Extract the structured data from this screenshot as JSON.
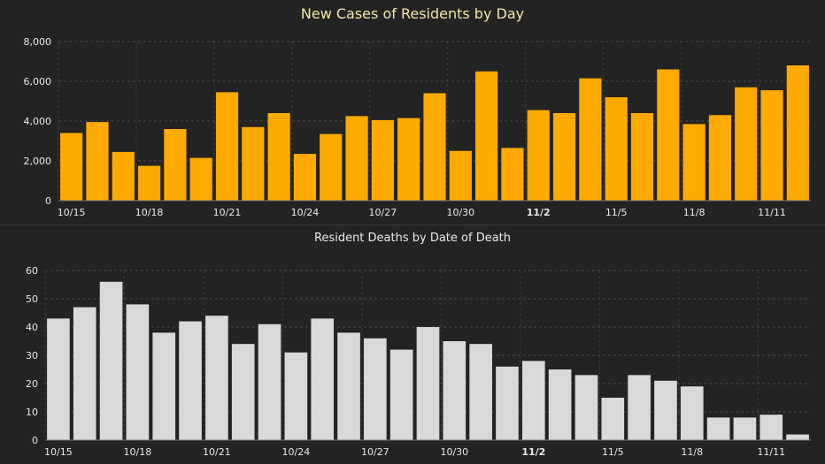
{
  "chart_data": [
    {
      "type": "bar",
      "title": "New Cases of Residents by Day",
      "xlabel": "",
      "ylabel": "",
      "ylim": [
        0,
        8000
      ],
      "yticks": [
        0,
        2000,
        4000,
        6000,
        8000
      ],
      "ytick_labels": [
        "0",
        "2,000",
        "4,000",
        "6,000",
        "8,000"
      ],
      "grid": true,
      "bar_color": "#ffaa00",
      "categories": [
        "10/15",
        "10/16",
        "10/17",
        "10/18",
        "10/19",
        "10/20",
        "10/21",
        "10/22",
        "10/23",
        "10/24",
        "10/25",
        "10/26",
        "10/27",
        "10/28",
        "10/29",
        "10/30",
        "10/31",
        "11/1",
        "11/2",
        "11/3",
        "11/4",
        "11/5",
        "11/6",
        "11/7",
        "11/8",
        "11/9",
        "11/10",
        "11/11",
        "11/12"
      ],
      "x_tick_labels": [
        "10/15",
        "10/18",
        "10/21",
        "10/24",
        "10/27",
        "10/30",
        "11/2",
        "11/5",
        "11/8",
        "11/11"
      ],
      "values": [
        3400,
        3950,
        2450,
        1750,
        3600,
        2150,
        5450,
        3700,
        4400,
        2350,
        3350,
        4250,
        4050,
        4150,
        5400,
        2500,
        6500,
        2650,
        4550,
        4400,
        6150,
        5200,
        4400,
        6600,
        3850,
        4300,
        5700,
        5550,
        6800
      ]
    },
    {
      "type": "bar",
      "title": "Resident Deaths by Date of Death",
      "xlabel": "",
      "ylabel": "",
      "ylim": [
        0,
        60
      ],
      "yticks": [
        0,
        10,
        20,
        30,
        40,
        50,
        60
      ],
      "ytick_labels": [
        "0",
        "10",
        "20",
        "30",
        "40",
        "50",
        "60"
      ],
      "grid": true,
      "bar_color": "#d9d9d9",
      "categories": [
        "10/15",
        "10/16",
        "10/17",
        "10/18",
        "10/19",
        "10/20",
        "10/21",
        "10/22",
        "10/23",
        "10/24",
        "10/25",
        "10/26",
        "10/27",
        "10/28",
        "10/29",
        "10/30",
        "10/31",
        "11/1",
        "11/2",
        "11/3",
        "11/4",
        "11/5",
        "11/6",
        "11/7",
        "11/8",
        "11/9",
        "11/10",
        "11/11",
        "11/12"
      ],
      "x_tick_labels": [
        "10/15",
        "10/18",
        "10/21",
        "10/24",
        "10/27",
        "10/30",
        "11/2",
        "11/5",
        "11/8",
        "11/11"
      ],
      "values": [
        43,
        47,
        56,
        48,
        38,
        42,
        44,
        34,
        41,
        31,
        43,
        38,
        36,
        32,
        40,
        35,
        34,
        26,
        28,
        25,
        23,
        15,
        23,
        21,
        19,
        8,
        8,
        9,
        2
      ]
    }
  ]
}
